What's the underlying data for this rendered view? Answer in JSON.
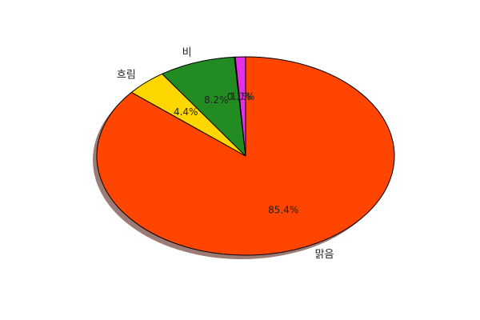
{
  "chart_data": {
    "type": "pie",
    "title": "",
    "shadow": true,
    "start_angle_deg": 90,
    "direction": "clockwise",
    "categories": [
      "맑음",
      "흐림",
      "비",
      "",
      ""
    ],
    "values": [
      85.4,
      4.4,
      8.2,
      0.1,
      1.1
    ],
    "labels": [
      "85.4%",
      "4.4%",
      "8.2%",
      "0.1%",
      "1.1%"
    ],
    "colors": [
      "#ff4500",
      "#ffd700",
      "#228b22",
      "#8b008b",
      "#e62ee6"
    ],
    "edge_color": "#000000",
    "shadow_color": "#9c7b74"
  }
}
